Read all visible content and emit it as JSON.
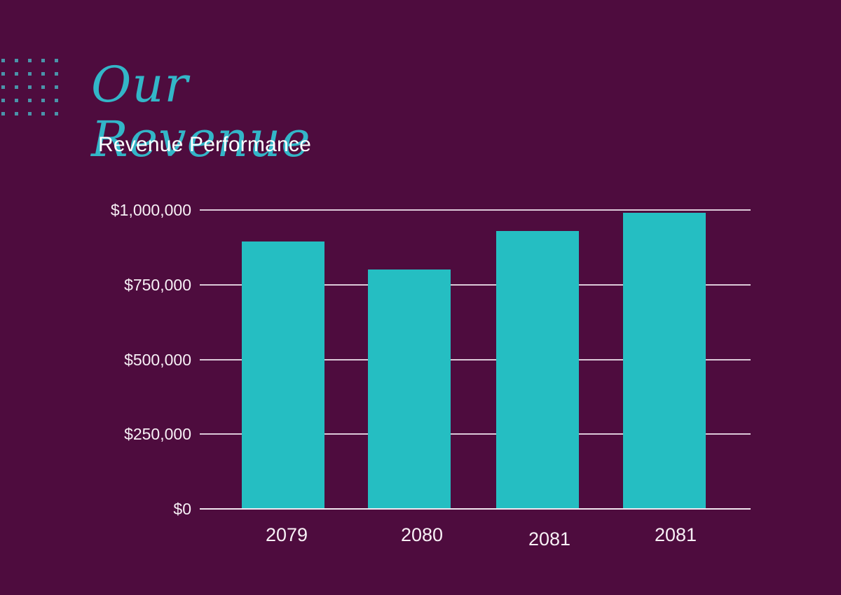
{
  "decor": {
    "title_line1": "Our",
    "title_line2": "Revenue",
    "dots_rows": 5,
    "dots_cols": 5
  },
  "header": {
    "subtitle": "Revenue Performance"
  },
  "chart_data": {
    "type": "bar",
    "title": "Revenue Performance",
    "categories": [
      "2079",
      "2080",
      "2081",
      "2081"
    ],
    "values": [
      895000,
      800000,
      930000,
      990000
    ],
    "ylim": [
      0,
      1000000
    ],
    "ytick_step": 250000,
    "ytick_labels": [
      "$0",
      "$250,000",
      "$500,000",
      "$750,000",
      "$1,000,000"
    ],
    "xlabel": "",
    "ylabel": "",
    "grid": true,
    "legend": "none"
  },
  "colors": {
    "background": "#4e0c3e",
    "bar": "#25bec2",
    "title_teal": "#33b6c8",
    "dots": "#4a95aa",
    "gridline": "#dccad8",
    "axis_baseline": "#f1e7ef",
    "label_text": "#f7f0f5",
    "subtitle_text": "#ffffff"
  }
}
